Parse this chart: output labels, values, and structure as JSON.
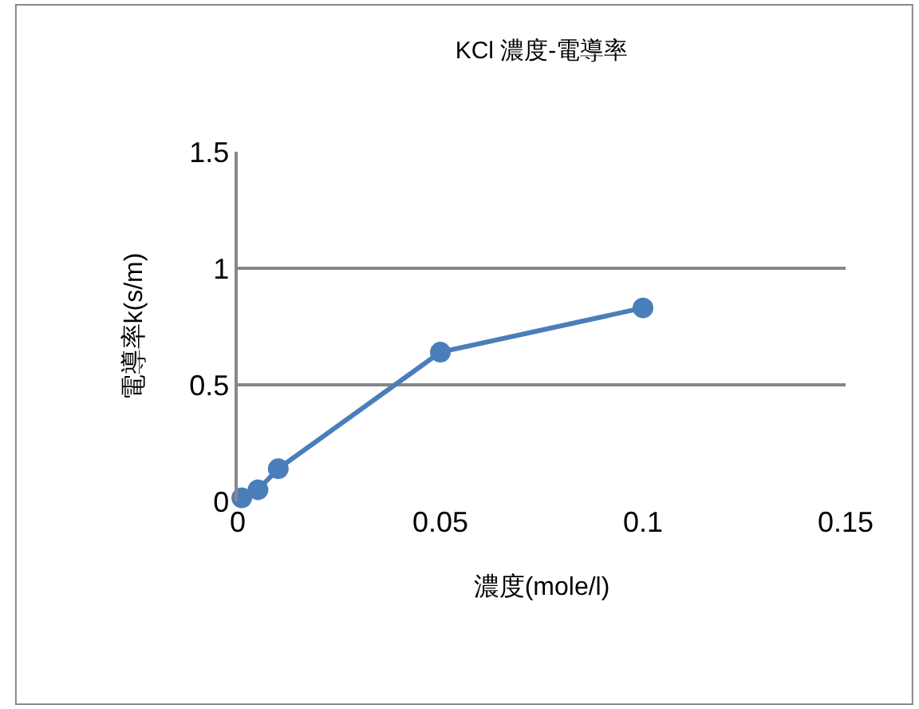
{
  "chart_data": {
    "type": "line",
    "title": "KCl 濃度-電導率",
    "xlabel": "濃度(mole/l)",
    "ylabel": "電導率k(s/m)",
    "x": [
      0.001,
      0.005,
      0.01,
      0.05,
      0.1
    ],
    "series": [
      {
        "color": "#4a7ebb",
        "values": [
          0.015,
          0.05,
          0.14,
          0.64,
          0.83
        ]
      }
    ],
    "xlim": [
      0,
      0.15
    ],
    "xticks": [
      0,
      0.05,
      0.1,
      0.15
    ],
    "ylim": [
      0,
      1.5
    ],
    "yticks": [
      0,
      0.5,
      1,
      1.5
    ],
    "grid": "y",
    "legend": false,
    "marker": "circle",
    "line_style": "solid"
  }
}
